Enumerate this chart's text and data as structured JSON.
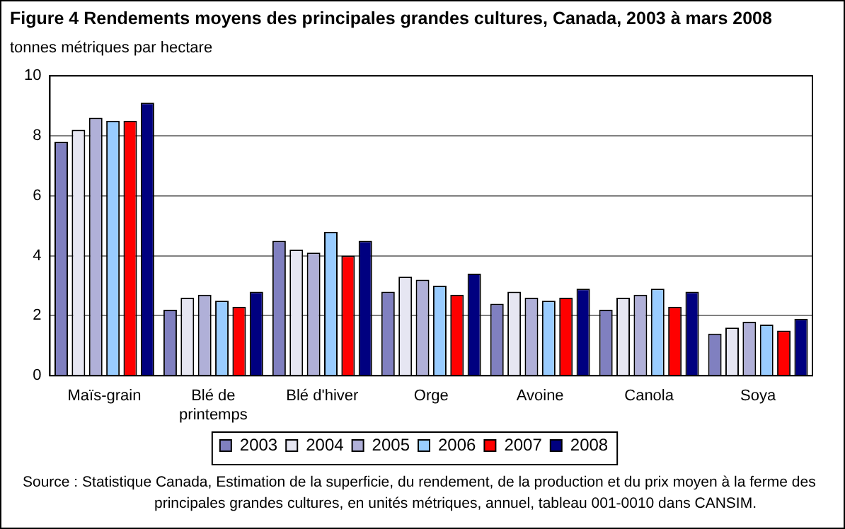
{
  "chart_data": {
    "type": "bar",
    "title": "Figure 4   Rendements moyens des principales grandes cultures, Canada, 2003 à mars 2008",
    "ylabel": "tonnes métriques par hectare",
    "categories": [
      "Maïs-grain",
      "Blé de printemps",
      "Blé d'hiver",
      "Orge",
      "Avoine",
      "Canola",
      "Soya"
    ],
    "series": [
      {
        "name": "2003",
        "color": "#8080c0",
        "values": [
          7.8,
          2.2,
          4.5,
          2.8,
          2.4,
          2.2,
          1.4
        ]
      },
      {
        "name": "2004",
        "color": "#e6e6f2",
        "values": [
          8.2,
          2.6,
          4.2,
          3.3,
          2.8,
          2.6,
          1.6
        ]
      },
      {
        "name": "2005",
        "color": "#b0b0d8",
        "values": [
          8.6,
          2.7,
          4.1,
          3.2,
          2.6,
          2.7,
          1.8
        ]
      },
      {
        "name": "2006",
        "color": "#99ccff",
        "values": [
          8.5,
          2.5,
          4.8,
          3.0,
          2.5,
          2.9,
          1.7
        ]
      },
      {
        "name": "2007",
        "color": "#ff0000",
        "values": [
          8.5,
          2.3,
          4.0,
          2.7,
          2.6,
          2.3,
          1.5
        ]
      },
      {
        "name": "2008",
        "color": "#000080",
        "values": [
          9.1,
          2.8,
          4.5,
          3.4,
          2.9,
          2.8,
          1.9
        ]
      }
    ],
    "ylim": [
      0,
      10
    ],
    "yticks": [
      0,
      2,
      4,
      6,
      8,
      10
    ],
    "grid": "y",
    "legend": "bottom",
    "annotations": [
      "Source : Statistique Canada, Estimation de la superficie, du rendement, de la production et du prix moyen à la ferme des principales grandes cultures, en unités métriques, annuel, tableau 001-0010 dans CANSIM."
    ]
  }
}
